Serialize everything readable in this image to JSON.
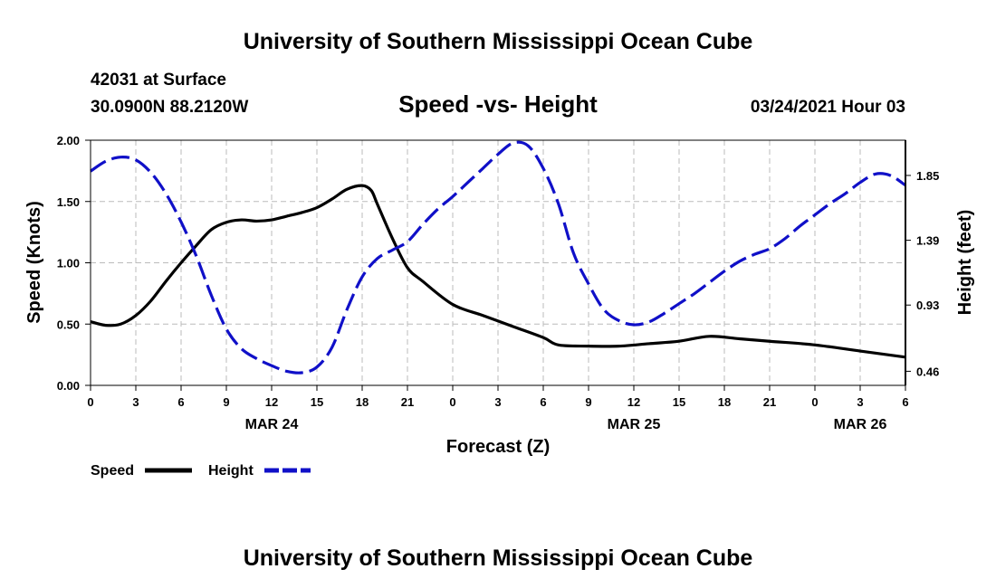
{
  "header": {
    "title": "University of Southern Mississippi Ocean Cube",
    "station": "42031 at Surface",
    "location": "30.0900N 88.2120W",
    "chart_title": "Speed -vs- Height",
    "datetime": "03/24/2021 Hour 03"
  },
  "footer": {
    "title": "University of Southern Mississippi Ocean Cube"
  },
  "colors": {
    "speed": "#000000",
    "height": "#1010c8",
    "grid": "#bbbbbb"
  },
  "chart_data": {
    "type": "line",
    "title": "Speed -vs- Height",
    "xlabel": "Forecast (Z)",
    "ylabel": "Speed (Knots)",
    "y2label": "Height (feet)",
    "grid": true,
    "legend_position": "bottom-left",
    "xlim": [
      0,
      54
    ],
    "x_tick_values": [
      0,
      3,
      6,
      9,
      12,
      15,
      18,
      21,
      24,
      27,
      30,
      33,
      36,
      39,
      42,
      45,
      48,
      51,
      54
    ],
    "x_tick_labels": [
      "0",
      "3",
      "6",
      "9",
      "12",
      "15",
      "18",
      "21",
      "0",
      "3",
      "6",
      "9",
      "12",
      "15",
      "18",
      "21",
      "0",
      "3",
      "6"
    ],
    "date_labels": [
      {
        "x": 12,
        "label": "MAR 24"
      },
      {
        "x": 36,
        "label": "MAR 25"
      },
      {
        "x": 51,
        "label": "MAR 26"
      }
    ],
    "ylim": [
      0,
      2
    ],
    "y_ticks": [
      0,
      0.5,
      1,
      1.5,
      2
    ],
    "y_tick_labels": [
      "0.00",
      "0.50",
      "1.00",
      "1.50",
      "2.00"
    ],
    "y2lim": [
      0.36,
      2.1
    ],
    "y2_ticks": [
      0.46,
      0.93,
      1.39,
      1.85
    ],
    "y2_tick_labels": [
      "0.46",
      "0.93",
      "1.39",
      "1.85"
    ],
    "series": [
      {
        "name": "Speed",
        "axis": "left",
        "style": "solid",
        "x": [
          0,
          1,
          2,
          3,
          4,
          5,
          6,
          7,
          8,
          9,
          10,
          11,
          12,
          13,
          14,
          15,
          16,
          17,
          18,
          18.6,
          19,
          20,
          21,
          22,
          24,
          26,
          28,
          30,
          31,
          33,
          35,
          37,
          39,
          41,
          43,
          45,
          48,
          51,
          54
        ],
        "y": [
          0.52,
          0.49,
          0.5,
          0.57,
          0.69,
          0.85,
          1.0,
          1.14,
          1.27,
          1.33,
          1.35,
          1.34,
          1.35,
          1.38,
          1.41,
          1.45,
          1.52,
          1.6,
          1.63,
          1.59,
          1.48,
          1.2,
          0.96,
          0.85,
          0.66,
          0.57,
          0.48,
          0.39,
          0.33,
          0.32,
          0.32,
          0.34,
          0.36,
          0.4,
          0.38,
          0.36,
          0.33,
          0.28,
          0.23
        ]
      },
      {
        "name": "Height",
        "axis": "right",
        "style": "dashed",
        "x": [
          0,
          1,
          2,
          3,
          4,
          5,
          6,
          7,
          8,
          9,
          10,
          11,
          12,
          13,
          14,
          15,
          16,
          17,
          18,
          19,
          20,
          21,
          22,
          23,
          24,
          25,
          26,
          27,
          28,
          29,
          30,
          31,
          32,
          33,
          34,
          35,
          36,
          37,
          38,
          39,
          40,
          41,
          42,
          43,
          44,
          45,
          46,
          47,
          48,
          49,
          50,
          51,
          52,
          53,
          54
        ],
        "y": [
          1.88,
          1.95,
          1.98,
          1.96,
          1.87,
          1.72,
          1.52,
          1.28,
          1.0,
          0.76,
          0.62,
          0.55,
          0.5,
          0.46,
          0.45,
          0.49,
          0.63,
          0.9,
          1.13,
          1.26,
          1.32,
          1.38,
          1.5,
          1.61,
          1.7,
          1.8,
          1.9,
          2.0,
          2.08,
          2.06,
          1.9,
          1.65,
          1.3,
          1.08,
          0.9,
          0.82,
          0.79,
          0.81,
          0.87,
          0.94,
          1.01,
          1.09,
          1.17,
          1.24,
          1.29,
          1.33,
          1.4,
          1.49,
          1.57,
          1.65,
          1.72,
          1.8,
          1.86,
          1.85,
          1.78
        ]
      }
    ]
  },
  "legend": {
    "items": [
      {
        "label": "Speed"
      },
      {
        "label": "Height"
      }
    ]
  }
}
